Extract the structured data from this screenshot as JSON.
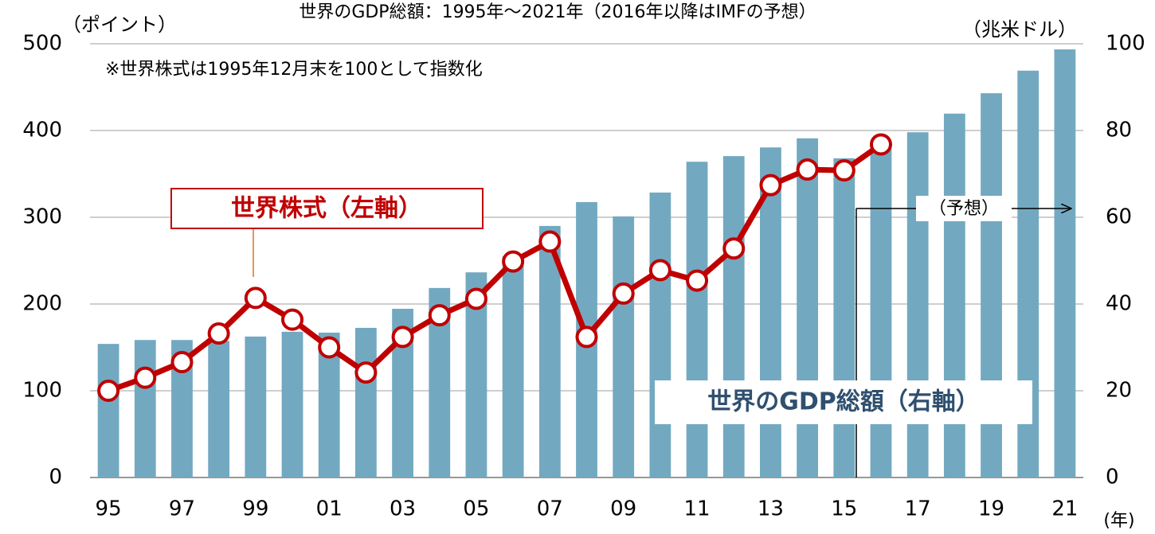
{
  "chart_data": {
    "type": "bar",
    "title": "世界のGDP総額：1995年～2021年（2016年以降はIMFの予想）",
    "y_label": "（ポイント）",
    "y2_label": "（兆米ドル）",
    "x_label": "(年)",
    "annotations": [
      "※世界株式は1995年12月末を100として指数化",
      "世界株式（左軸）",
      "世界のGDP総額（右軸）",
      "（予想）"
    ],
    "categories": [
      "95",
      null,
      "97",
      null,
      "99",
      null,
      "01",
      null,
      "03",
      null,
      "05",
      null,
      "07",
      null,
      "09",
      null,
      "11",
      null,
      "13",
      null,
      "15",
      null,
      "17",
      null,
      "19",
      null,
      "21"
    ],
    "series": [
      {
        "name": "世界のGDP総額（右軸）",
        "type": "bar",
        "axis": "y2",
        "color": "#72a9c1",
        "values": [
          30.8,
          31.7,
          31.7,
          31.5,
          32.5,
          33.6,
          33.4,
          34.5,
          38.9,
          43.7,
          47.3,
          51,
          58.0,
          63.5,
          60.2,
          65.7,
          72.8,
          74.1,
          76.1,
          78.2,
          73.6,
          76,
          79.6,
          83.9,
          88.6,
          93.8,
          98.7
        ]
      },
      {
        "name": "世界株式（左軸）",
        "type": "line",
        "axis": "y",
        "color": "#c00000",
        "values": [
          100,
          115,
          133,
          166,
          207,
          182,
          150,
          121,
          162,
          187,
          206,
          249,
          272,
          162,
          212,
          239,
          227,
          264,
          337,
          355,
          354,
          384,
          null,
          null,
          null,
          null,
          null
        ]
      }
    ],
    "ylim": [
      0,
      500
    ],
    "yticks": [
      0,
      100,
      200,
      300,
      400,
      500
    ],
    "y2lim": [
      0,
      100
    ],
    "y2ticks": [
      0,
      20,
      40,
      60,
      80,
      100
    ],
    "grid": true
  }
}
